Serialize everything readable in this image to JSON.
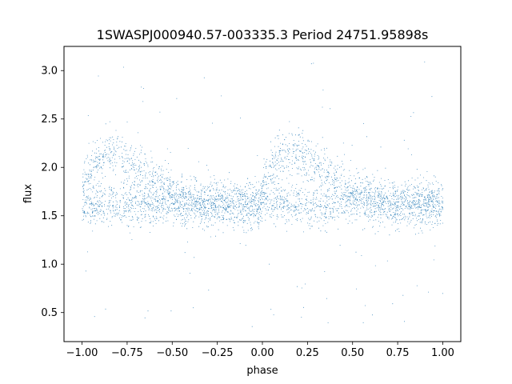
{
  "chart_data": {
    "type": "scatter",
    "title": "1SWASPJ000940.57-003335.3 Period 24751.95898s",
    "xlabel": "phase",
    "ylabel": "flux",
    "xlim": [
      -1.1,
      1.1
    ],
    "ylim": [
      0.2,
      3.25
    ],
    "x_ticks": [
      -1.0,
      -0.75,
      -0.5,
      -0.25,
      0.0,
      0.25,
      0.5,
      0.75,
      1.0
    ],
    "x_tick_labels": [
      "−1.00",
      "−0.75",
      "−0.50",
      "−0.25",
      "0.00",
      "0.25",
      "0.50",
      "0.75",
      "1.00"
    ],
    "y_ticks": [
      0.5,
      1.0,
      1.5,
      2.0,
      2.5,
      3.0
    ],
    "y_tick_labels": [
      "0.5",
      "1.0",
      "1.5",
      "2.0",
      "2.5",
      "3.0"
    ],
    "grid": false,
    "legend": "none",
    "marker_color": "#1f77b4",
    "series": [
      {
        "phase_range": [
          -1.0,
          1.0
        ],
        "point_count": 20000,
        "baseline_flux": 1.62,
        "upper_branch_peak_flux": 2.15,
        "upper_branch_peak_phase": [
          -0.87,
          0.13
        ],
        "typical_scatter": 0.12,
        "outlier_flux_range": [
          0.35,
          3.1
        ]
      }
    ]
  }
}
